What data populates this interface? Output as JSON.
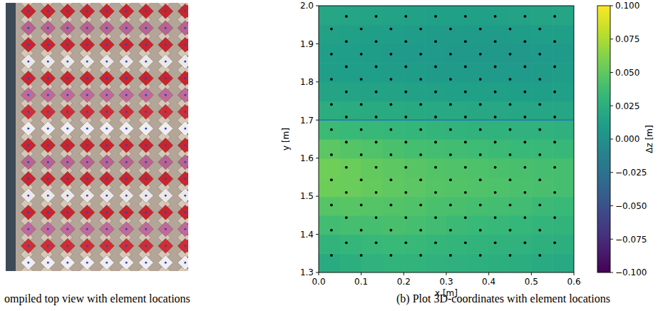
{
  "photo": {
    "caption": "ompiled top view with element locations"
  },
  "chart_data": {
    "type": "heatmap",
    "caption": "(b) Plot 3D-coordinates with element locations",
    "x_label": "x [m]",
    "y_label": "y [m]",
    "xlim": [
      0,
      0.6
    ],
    "ylim": [
      1.3,
      2.0
    ],
    "xticks": [
      {
        "value": 0,
        "label": "0.0"
      },
      0.1,
      0.2,
      0.3,
      0.4,
      0.5,
      0.6
    ],
    "yticks": [
      1.3,
      1.4,
      1.5,
      1.6,
      1.7,
      1.8,
      1.9,
      {
        "value": 2,
        "label": "2.0"
      }
    ],
    "cells": [
      [
        0.022,
        0.025,
        0.028,
        0.03,
        0.03,
        0.028,
        0.027,
        0.026,
        0.025,
        0.024,
        0.022,
        0.02
      ],
      [
        0.03,
        0.032,
        0.034,
        0.035,
        0.034,
        0.032,
        0.031,
        0.03,
        0.029,
        0.028,
        0.026,
        0.025
      ],
      [
        0.038,
        0.04,
        0.04,
        0.041,
        0.04,
        0.038,
        0.036,
        0.035,
        0.034,
        0.033,
        0.031,
        0.03
      ],
      [
        0.046,
        0.047,
        0.046,
        0.045,
        0.044,
        0.042,
        0.041,
        0.04,
        0.039,
        0.038,
        0.036,
        0.035
      ],
      [
        0.055,
        0.054,
        0.052,
        0.05,
        0.048,
        0.046,
        0.045,
        0.044,
        0.043,
        0.042,
        0.041,
        0.04
      ],
      [
        0.056,
        0.054,
        0.051,
        0.049,
        0.047,
        0.045,
        0.044,
        0.043,
        0.042,
        0.041,
        0.04,
        0.04
      ],
      [
        0.048,
        0.046,
        0.044,
        0.042,
        0.04,
        0.039,
        0.038,
        0.037,
        0.036,
        0.035,
        0.035,
        0.034
      ],
      [
        0.036,
        0.035,
        0.034,
        0.033,
        0.032,
        0.031,
        0.03,
        0.029,
        0.029,
        0.028,
        0.028,
        0.027
      ],
      [
        0.024,
        0.023,
        0.022,
        0.022,
        0.021,
        0.02,
        0.02,
        0.019,
        0.019,
        0.018,
        0.018,
        0.018
      ],
      [
        0.016,
        0.016,
        0.015,
        0.015,
        0.014,
        0.014,
        0.013,
        0.013,
        0.013,
        0.012,
        0.012,
        0.013
      ],
      [
        0.012,
        0.011,
        0.011,
        0.01,
        0.01,
        0.009,
        0.009,
        0.009,
        0.008,
        0.008,
        0.009,
        0.01
      ],
      [
        0.012,
        0.011,
        0.01,
        0.009,
        0.008,
        0.008,
        0.007,
        0.007,
        0.007,
        0.007,
        0.008,
        0.009
      ],
      [
        0.014,
        0.013,
        0.012,
        0.011,
        0.01,
        0.009,
        0.009,
        0.009,
        0.009,
        0.01,
        0.011,
        0.012
      ],
      [
        0.018,
        0.017,
        0.016,
        0.015,
        0.014,
        0.013,
        0.013,
        0.013,
        0.014,
        0.015,
        0.016,
        0.017
      ]
    ],
    "colorbar": {
      "label": "Δz [m]",
      "lim": [
        -0.1,
        0.1
      ],
      "ticks": [
        {
          "value": -0.1,
          "label": "−0.100"
        },
        {
          "value": -0.075,
          "label": "−0.075"
        },
        {
          "value": -0.05,
          "label": "−0.050"
        },
        {
          "value": -0.025,
          "label": "−0.025"
        },
        {
          "value": 0,
          "label": "0.000"
        },
        {
          "value": 0.025,
          "label": "0.025"
        },
        {
          "value": 0.05,
          "label": "0.050"
        },
        {
          "value": 0.075,
          "label": "0.075"
        },
        {
          "value": 0.1,
          "label": "0.100"
        }
      ]
    },
    "reference_line": {
      "y": 1.7,
      "color": "#1f77b4"
    },
    "series": [
      {
        "type": "scatter",
        "color": "#000000",
        "marker": "circle",
        "x": [
          0.03,
          0.1,
          0.17,
          0.24,
          0.31,
          0.38,
          0.45,
          0.52,
          0.065,
          0.135,
          0.205,
          0.275,
          0.345,
          0.415,
          0.485,
          0.555,
          0.03,
          0.1,
          0.17,
          0.24,
          0.31,
          0.38,
          0.45,
          0.52,
          0.065,
          0.135,
          0.205,
          0.275,
          0.345,
          0.415,
          0.485,
          0.555,
          0.03,
          0.1,
          0.17,
          0.24,
          0.31,
          0.38,
          0.45,
          0.52,
          0.065,
          0.135,
          0.205,
          0.275,
          0.345,
          0.415,
          0.485,
          0.555,
          0.03,
          0.1,
          0.17,
          0.24,
          0.31,
          0.38,
          0.45,
          0.52,
          0.065,
          0.135,
          0.205,
          0.275,
          0.345,
          0.415,
          0.485,
          0.555,
          0.03,
          0.1,
          0.17,
          0.24,
          0.31,
          0.38,
          0.45,
          0.52,
          0.065,
          0.135,
          0.205,
          0.275,
          0.345,
          0.415,
          0.485,
          0.555,
          0.03,
          0.1,
          0.17,
          0.24,
          0.31,
          0.38,
          0.45,
          0.52,
          0.065,
          0.135,
          0.205,
          0.275,
          0.345,
          0.415,
          0.485,
          0.555,
          0.03,
          0.1,
          0.17,
          0.24,
          0.31,
          0.38,
          0.45,
          0.52,
          0.065,
          0.135,
          0.205,
          0.275,
          0.345,
          0.415,
          0.485,
          0.555,
          0.03,
          0.1,
          0.17,
          0.24,
          0.31,
          0.38,
          0.45,
          0.52,
          0.065,
          0.135,
          0.205,
          0.275,
          0.345,
          0.415,
          0.485,
          0.555,
          0.03,
          0.1,
          0.17,
          0.24,
          0.31,
          0.38,
          0.45,
          0.52,
          0.065,
          0.135,
          0.205,
          0.275,
          0.345,
          0.415,
          0.485,
          0.555,
          0.03,
          0.1,
          0.17,
          0.24,
          0.31,
          0.38,
          0.45,
          0.52,
          0.065,
          0.135,
          0.205,
          0.275,
          0.345,
          0.415,
          0.485,
          0.555
        ],
        "values": [
          1.345,
          1.345,
          1.345,
          1.345,
          1.345,
          1.345,
          1.345,
          1.345,
          1.378,
          1.378,
          1.378,
          1.378,
          1.378,
          1.378,
          1.378,
          1.378,
          1.411,
          1.411,
          1.411,
          1.411,
          1.411,
          1.411,
          1.411,
          1.411,
          1.444,
          1.444,
          1.444,
          1.444,
          1.444,
          1.444,
          1.444,
          1.444,
          1.477,
          1.477,
          1.477,
          1.477,
          1.477,
          1.477,
          1.477,
          1.477,
          1.51,
          1.51,
          1.51,
          1.51,
          1.51,
          1.51,
          1.51,
          1.51,
          1.543,
          1.543,
          1.543,
          1.543,
          1.543,
          1.543,
          1.543,
          1.543,
          1.576,
          1.576,
          1.576,
          1.576,
          1.576,
          1.576,
          1.576,
          1.576,
          1.609,
          1.609,
          1.609,
          1.609,
          1.609,
          1.609,
          1.609,
          1.609,
          1.642,
          1.642,
          1.642,
          1.642,
          1.642,
          1.642,
          1.642,
          1.642,
          1.675,
          1.675,
          1.675,
          1.675,
          1.675,
          1.675,
          1.675,
          1.675,
          1.708,
          1.708,
          1.708,
          1.708,
          1.708,
          1.708,
          1.708,
          1.708,
          1.741,
          1.741,
          1.741,
          1.741,
          1.741,
          1.741,
          1.741,
          1.741,
          1.774,
          1.774,
          1.774,
          1.774,
          1.774,
          1.774,
          1.774,
          1.774,
          1.807,
          1.807,
          1.807,
          1.807,
          1.807,
          1.807,
          1.807,
          1.807,
          1.84,
          1.84,
          1.84,
          1.84,
          1.84,
          1.84,
          1.84,
          1.84,
          1.873,
          1.873,
          1.873,
          1.873,
          1.873,
          1.873,
          1.873,
          1.873,
          1.906,
          1.906,
          1.906,
          1.906,
          1.906,
          1.906,
          1.906,
          1.906,
          1.939,
          1.939,
          1.939,
          1.939,
          1.939,
          1.939,
          1.939,
          1.939,
          1.972,
          1.972,
          1.972,
          1.972,
          1.972,
          1.972,
          1.972,
          1.972
        ]
      }
    ]
  }
}
